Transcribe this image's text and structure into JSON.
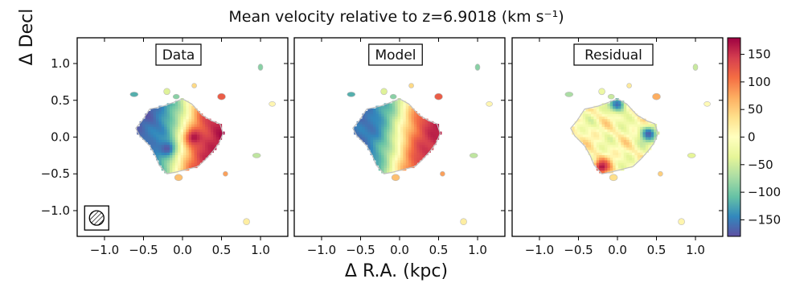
{
  "figure": {
    "title": "Mean velocity relative to z=6.9018 (km s⁻¹)",
    "xlabel": "Δ R.A. (kpc)",
    "ylabel": "Δ Decl"
  },
  "chart_data": {
    "type": "heatmap",
    "title": "Mean velocity relative to z=6.9018 (km s⁻¹)",
    "xlabel": "Δ R.A. (kpc)",
    "ylabel": "Δ Decl",
    "xlim": [
      -1.35,
      1.35
    ],
    "ylim": [
      -1.35,
      1.35
    ],
    "x_ticks": [
      -1.0,
      -0.5,
      0.0,
      0.5,
      1.0
    ],
    "x_tick_labels": [
      "−1.0",
      "−0.5",
      "0.0",
      "0.5",
      "1.0"
    ],
    "y_ticks": [
      1.0,
      0.5,
      0.0,
      -0.5,
      -1.0
    ],
    "y_tick_labels": [
      "1.0",
      "0.5",
      "0.0",
      "−0.5",
      "−1.0"
    ],
    "colorbar": {
      "range": [
        -180,
        180
      ],
      "ticks": [
        150,
        100,
        50,
        0,
        -50,
        -100,
        -150
      ],
      "tick_labels": [
        "150",
        "100",
        "50",
        "0",
        "−50",
        "−100",
        "−150"
      ],
      "colormap": "Spectral_r"
    },
    "panels": [
      {
        "label": "Data",
        "velocity_field": "rotation",
        "kinematic_axis_angle_deg": -10,
        "amplitude_kms": 170,
        "extra_blobs": [
          {
            "x": -0.2,
            "y": -0.15,
            "v": -175
          },
          {
            "x": 0.15,
            "y": 0.0,
            "v": 170
          }
        ]
      },
      {
        "label": "Model",
        "velocity_field": "rotation",
        "kinematic_axis_angle_deg": -8,
        "amplitude_kms": 165,
        "extra_blobs": []
      },
      {
        "label": "Residual",
        "velocity_field": "residual",
        "amplitude_kms": 40,
        "extra_blobs": [
          {
            "x": -0.2,
            "y": -0.4,
            "v": 170
          },
          {
            "x": 0.4,
            "y": 0.05,
            "v": -170
          },
          {
            "x": 0.0,
            "y": 0.45,
            "v": -160
          }
        ]
      }
    ],
    "beam": {
      "x": -1.1,
      "y": -1.1,
      "hatched": true
    }
  }
}
